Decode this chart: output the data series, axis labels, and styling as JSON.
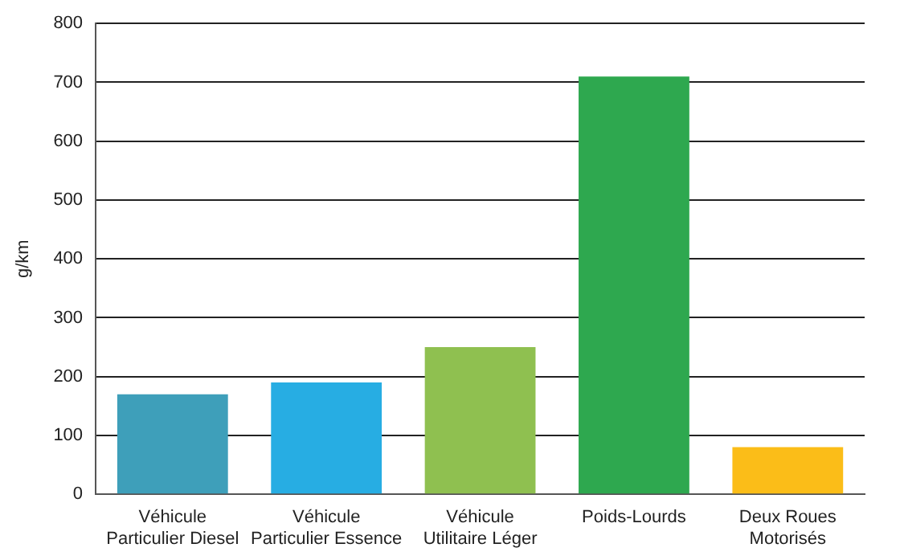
{
  "chart_data": {
    "type": "bar",
    "ylabel": "g/km",
    "categories": [
      "Véhicule\nParticulier Diesel",
      "Véhicule\nParticulier Essence",
      "Véhicule\nUtilitaire Léger",
      "Poids-Lourds",
      "Deux Roues\nMotorisés"
    ],
    "values": [
      170,
      190,
      250,
      710,
      80
    ],
    "colors": [
      "#3e9fba",
      "#27ade3",
      "#8fc050",
      "#2ea84f",
      "#fbbd18"
    ],
    "ylim": [
      0,
      800
    ],
    "yticks": [
      0,
      100,
      200,
      300,
      400,
      500,
      600,
      700,
      800
    ],
    "grid": "y",
    "legend": false
  }
}
